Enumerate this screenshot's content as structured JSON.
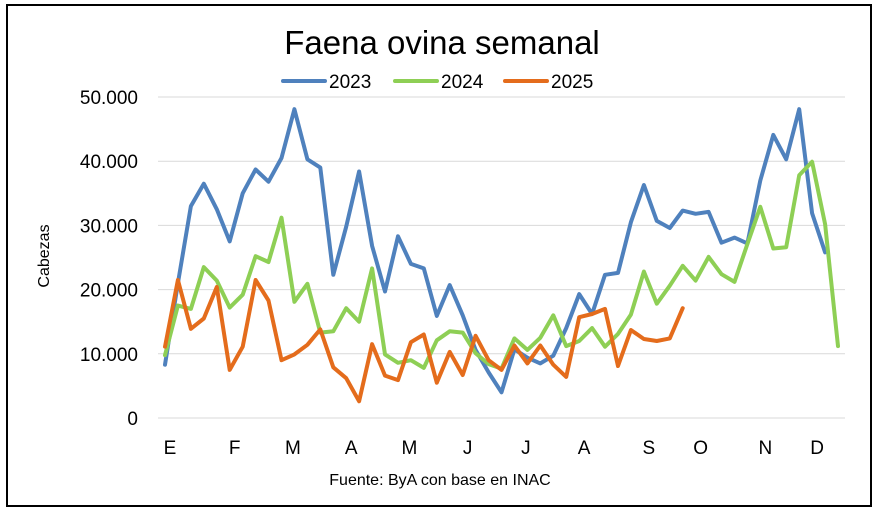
{
  "chart_data": {
    "type": "line",
    "title": "Faena ovina semanal",
    "ylabel": "Cabezas",
    "xlabel": "",
    "source": "Fuente: ByA con base en INAC",
    "ylim": [
      0,
      50000
    ],
    "y_ticks": [
      "0",
      "10.000",
      "20.000",
      "30.000",
      "40.000",
      "50.000"
    ],
    "y_tick_values": [
      0,
      10000,
      20000,
      30000,
      40000,
      50000
    ],
    "x_week_range": [
      1,
      53
    ],
    "month_labels": [
      {
        "label": "E",
        "week": 1
      },
      {
        "label": "F",
        "week": 6
      },
      {
        "label": "M",
        "week": 10.5
      },
      {
        "label": "A",
        "week": 15
      },
      {
        "label": "M",
        "week": 19.5
      },
      {
        "label": "J",
        "week": 24
      },
      {
        "label": "J",
        "week": 28.5
      },
      {
        "label": "A",
        "week": 33
      },
      {
        "label": "S",
        "week": 38
      },
      {
        "label": "O",
        "week": 42
      },
      {
        "label": "N",
        "week": 47
      },
      {
        "label": "D",
        "week": 51
      }
    ],
    "grid": true,
    "legend_position": "top",
    "series": [
      {
        "name": "2023",
        "color": "#4f81bd",
        "values": [
          8300,
          21000,
          33000,
          36500,
          32500,
          27500,
          35000,
          38700,
          36800,
          40500,
          48100,
          40300,
          39000,
          22300,
          29800,
          38400,
          26800,
          19700,
          28300,
          24000,
          23300,
          15900,
          20700,
          16000,
          10600,
          7100,
          4000,
          10700,
          9400,
          8500,
          9700,
          14000,
          19300,
          16200,
          22300,
          22600,
          30500,
          36300,
          30700,
          29600,
          32300,
          31800,
          32100,
          27300,
          28100,
          27200,
          37000,
          44100,
          40300,
          48100,
          31900,
          25800
        ]
      },
      {
        "name": "2024",
        "color": "#8ecf55",
        "values": [
          9800,
          17500,
          17000,
          23500,
          21400,
          17200,
          19200,
          25200,
          24300,
          31200,
          18100,
          20900,
          13300,
          13500,
          17100,
          15000,
          23300,
          9900,
          8600,
          9000,
          7800,
          12100,
          13500,
          13300,
          10100,
          8400,
          7700,
          12400,
          10600,
          12500,
          16000,
          11200,
          12000,
          14000,
          11100,
          13100,
          16100,
          22800,
          17800,
          20600,
          23700,
          21400,
          25100,
          22400,
          21200,
          27100,
          32900,
          26400,
          26600,
          37800,
          39900,
          30200,
          11200
        ]
      },
      {
        "name": "2025",
        "color": "#e46c1c",
        "values": [
          11100,
          21500,
          13900,
          15500,
          20400,
          7500,
          11100,
          21500,
          18300,
          9000,
          9900,
          11400,
          13800,
          7900,
          6200,
          2600,
          11500,
          6600,
          5900,
          11800,
          13000,
          5500,
          10300,
          6700,
          12800,
          9000,
          7500,
          11300,
          8500,
          11300,
          8300,
          6400,
          15700,
          16200,
          17000,
          8100,
          13700,
          12300,
          12000,
          12400,
          17100
        ]
      }
    ]
  }
}
